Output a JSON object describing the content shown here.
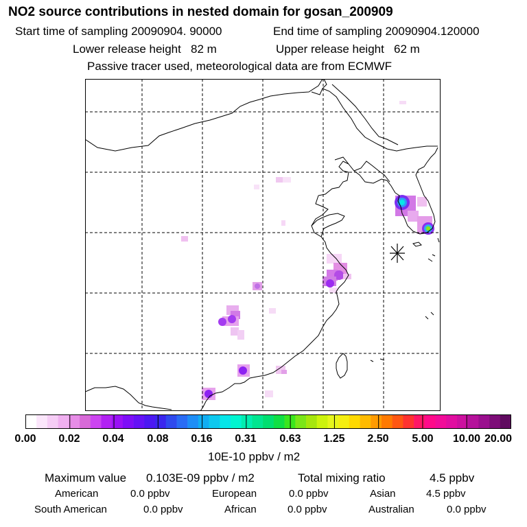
{
  "header": {
    "title": "NO2 source contributions in nested domain for gosan_200909",
    "start_sampling": "Start time of sampling 20090904. 90000",
    "end_sampling": "End time of sampling 20090904.120000",
    "lower_release": "Lower release height   82 m",
    "upper_release": "Upper release height   62 m",
    "tracer_note": "Passive tracer used, meteorological data are from ECMWF"
  },
  "colorbar": {
    "tick_labels": [
      "0.00",
      "0.02",
      "0.04",
      "0.08",
      "0.16",
      "0.31",
      "0.63",
      "1.25",
      "2.50",
      "5.00",
      "10.00",
      "20.00"
    ],
    "colors": [
      "#ffffff",
      "#fbe6fb",
      "#f6cdf6",
      "#f0b0f0",
      "#e78de7",
      "#d86ad8",
      "#cc44f0",
      "#b222f3",
      "#9a11f6",
      "#7e0ef7",
      "#6512f6",
      "#4c18f2",
      "#3a26ee",
      "#2f4aee",
      "#2a6cf4",
      "#1e8ef6",
      "#11aef2",
      "#0dc8ee",
      "#06e6e9",
      "#00f5d0",
      "#00eeb0",
      "#00e690",
      "#00df70",
      "#10df44",
      "#3be61e",
      "#7be618",
      "#a6e60d",
      "#ccf30d",
      "#e6f61b",
      "#f5ee10",
      "#ffd900",
      "#ffbb00",
      "#ff9b00",
      "#ff7a00",
      "#ff5712",
      "#ff3330",
      "#ff1666",
      "#ff0a8a",
      "#f20c99",
      "#e10ea0",
      "#cc109f",
      "#b5119b",
      "#9a0f8e",
      "#7d0d78",
      "#600b60"
    ],
    "unit": "10E-10 ppbv / m2"
  },
  "summary": {
    "max_label": "Maximum value",
    "max_value": "0.103E-09 ppbv / m2",
    "total_label": "Total mixing ratio",
    "total_value": "4.5 ppbv",
    "regions": [
      {
        "name": "American",
        "value": "0.0 ppbv"
      },
      {
        "name": "European",
        "value": "0.0 ppbv"
      },
      {
        "name": "Asian",
        "value": "4.5 ppbv"
      },
      {
        "name": "South American",
        "value": "0.0 ppbv"
      },
      {
        "name": "African",
        "value": "0.0 ppbv"
      },
      {
        "name": "Australian",
        "value": "0.0 ppbv"
      }
    ]
  },
  "map": {
    "receptor_marker": "gosan-receptor-star"
  }
}
